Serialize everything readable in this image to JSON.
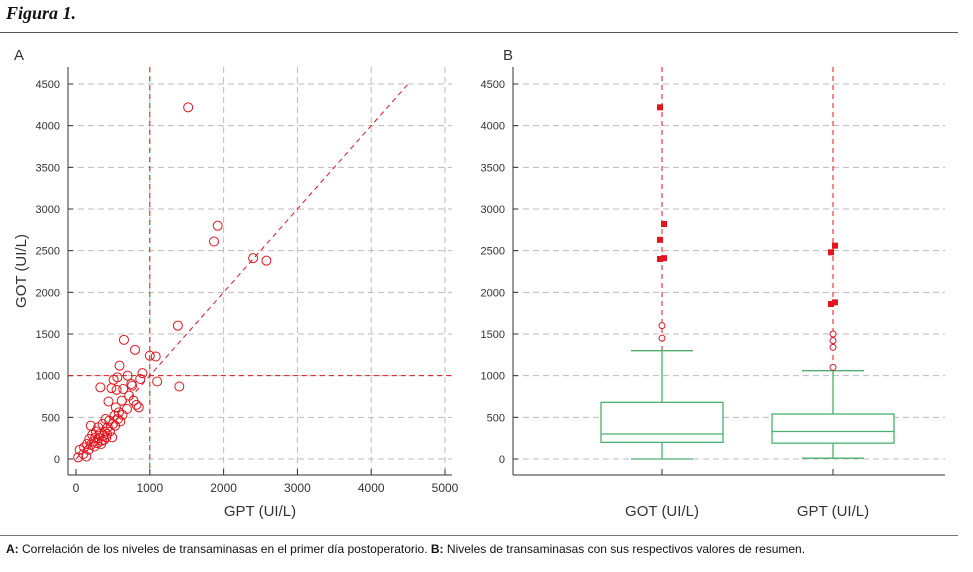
{
  "figure": {
    "title": "Figura 1."
  },
  "caption": {
    "a_label": "A:",
    "a_text": " Correlación de los niveles de transaminasas en el primer día postoperatorio. ",
    "b_label": "B:",
    "b_text": " Niveles de transaminasas con sus respectivos valores de resumen."
  },
  "colors": {
    "accent": "#e0161e",
    "box": "#4caf6e",
    "grid": "#bbbbbb",
    "axis": "#333333"
  },
  "chart_data": [
    {
      "type": "scatter",
      "panel_label": "A",
      "xlabel": "GPT (UI/L)",
      "ylabel": "GOT (UI/L)",
      "xlim": [
        0,
        5000
      ],
      "ylim": [
        0,
        4500
      ],
      "x_ticks": [
        0,
        1000,
        2000,
        3000,
        4000,
        5000
      ],
      "y_ticks": [
        0,
        500,
        1000,
        1500,
        2000,
        2500,
        3000,
        3500,
        4000,
        4500
      ],
      "reference_lines": {
        "vertical_x": 1000,
        "horizontal_y": 1000,
        "diagonal_from": [
          0,
          0
        ],
        "diagonal_to": [
          4500,
          4500
        ]
      },
      "points": [
        [
          30,
          20
        ],
        [
          50,
          110
        ],
        [
          100,
          60
        ],
        [
          110,
          140
        ],
        [
          140,
          30
        ],
        [
          150,
          180
        ],
        [
          170,
          110
        ],
        [
          180,
          240
        ],
        [
          200,
          170
        ],
        [
          200,
          400
        ],
        [
          220,
          290
        ],
        [
          240,
          210
        ],
        [
          250,
          150
        ],
        [
          260,
          260
        ],
        [
          270,
          330
        ],
        [
          290,
          190
        ],
        [
          300,
          380
        ],
        [
          310,
          250
        ],
        [
          320,
          300
        ],
        [
          330,
          860
        ],
        [
          340,
          180
        ],
        [
          350,
          220
        ],
        [
          360,
          420
        ],
        [
          370,
          280
        ],
        [
          380,
          230
        ],
        [
          390,
          330
        ],
        [
          400,
          480
        ],
        [
          410,
          260
        ],
        [
          420,
          300
        ],
        [
          430,
          380
        ],
        [
          440,
          690
        ],
        [
          450,
          460
        ],
        [
          460,
          330
        ],
        [
          480,
          850
        ],
        [
          490,
          260
        ],
        [
          500,
          420
        ],
        [
          510,
          950
        ],
        [
          520,
          520
        ],
        [
          530,
          400
        ],
        [
          540,
          620
        ],
        [
          550,
          830
        ],
        [
          560,
          980
        ],
        [
          570,
          480
        ],
        [
          580,
          560
        ],
        [
          590,
          1120
        ],
        [
          600,
          450
        ],
        [
          620,
          700
        ],
        [
          630,
          530
        ],
        [
          640,
          840
        ],
        [
          650,
          1430
        ],
        [
          690,
          600
        ],
        [
          700,
          1000
        ],
        [
          720,
          760
        ],
        [
          750,
          900
        ],
        [
          760,
          880
        ],
        [
          780,
          700
        ],
        [
          800,
          1310
        ],
        [
          820,
          650
        ],
        [
          850,
          620
        ],
        [
          870,
          960
        ],
        [
          900,
          1030
        ],
        [
          1000,
          1240
        ],
        [
          1080,
          1230
        ],
        [
          1100,
          930
        ],
        [
          1380,
          1600
        ],
        [
          1400,
          870
        ],
        [
          1520,
          4220
        ],
        [
          1870,
          2610
        ],
        [
          1920,
          2800
        ],
        [
          2400,
          2410
        ],
        [
          2580,
          2380
        ]
      ]
    },
    {
      "type": "boxplot",
      "panel_label": "B",
      "ylim": [
        0,
        4500
      ],
      "y_ticks": [
        0,
        500,
        1000,
        1500,
        2000,
        2500,
        3000,
        3500,
        4000,
        4500
      ],
      "categories": [
        "GOT (UI/L)",
        "GPT (UI/L)"
      ],
      "series": [
        {
          "name": "GOT (UI/L)",
          "min": 0,
          "q1": 200,
          "median": 300,
          "q3": 680,
          "whisker_high": 1300,
          "outliers": [
            1450,
            1600
          ],
          "extremes": [
            2400,
            2410,
            2630,
            2820,
            4220
          ]
        },
        {
          "name": "GPT (UI/L)",
          "min": 10,
          "q1": 190,
          "median": 330,
          "q3": 540,
          "whisker_high": 1060,
          "outliers": [
            1100,
            1340,
            1420,
            1500
          ],
          "extremes": [
            1860,
            1880,
            2480,
            2560
          ]
        }
      ]
    }
  ]
}
